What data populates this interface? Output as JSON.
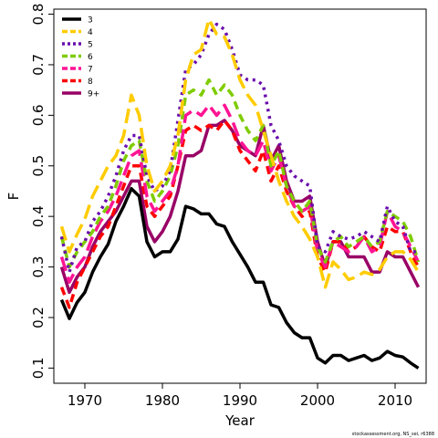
{
  "chart_data": {
    "type": "line",
    "xlabel": "Year",
    "ylabel": "F",
    "xlim": [
      1966,
      2014
    ],
    "ylim": [
      0.07,
      0.81
    ],
    "xticks": [
      1970,
      1980,
      1990,
      2000,
      2010
    ],
    "yticks": [
      0.1,
      0.2,
      0.3,
      0.4,
      0.5,
      0.6,
      0.7,
      0.8
    ],
    "legend_position": "top-left",
    "grid": false,
    "x": [
      1967,
      1968,
      1969,
      1970,
      1971,
      1972,
      1973,
      1974,
      1975,
      1976,
      1977,
      1978,
      1979,
      1980,
      1981,
      1982,
      1983,
      1984,
      1985,
      1986,
      1987,
      1988,
      1989,
      1990,
      1991,
      1992,
      1993,
      1994,
      1995,
      1996,
      1997,
      1998,
      1999,
      2000,
      2001,
      2002,
      2003,
      2004,
      2005,
      2006,
      2007,
      2008,
      2009,
      2010,
      2011,
      2012,
      2013
    ],
    "series": [
      {
        "name": "3",
        "color": "#000000",
        "dash": "solid",
        "values": [
          0.235,
          0.198,
          0.23,
          0.25,
          0.29,
          0.32,
          0.345,
          0.39,
          0.42,
          0.455,
          0.44,
          0.35,
          0.32,
          0.33,
          0.33,
          0.355,
          0.42,
          0.415,
          0.405,
          0.405,
          0.385,
          0.38,
          0.35,
          0.325,
          0.3,
          0.27,
          0.27,
          0.225,
          0.22,
          0.19,
          0.17,
          0.16,
          0.16,
          0.12,
          0.11,
          0.125,
          0.125,
          0.115,
          0.12,
          0.125,
          0.115,
          0.12,
          0.133,
          0.125,
          0.122,
          0.11,
          0.1
        ]
      },
      {
        "name": "4",
        "color": "#ffcc00",
        "dash": "longdash",
        "values": [
          0.38,
          0.33,
          0.365,
          0.395,
          0.44,
          0.47,
          0.5,
          0.52,
          0.56,
          0.64,
          0.6,
          0.5,
          0.45,
          0.47,
          0.5,
          0.56,
          0.67,
          0.72,
          0.73,
          0.79,
          0.76,
          0.755,
          0.72,
          0.67,
          0.64,
          0.62,
          0.57,
          0.52,
          0.47,
          0.43,
          0.4,
          0.38,
          0.355,
          0.32,
          0.26,
          0.31,
          0.295,
          0.275,
          0.28,
          0.29,
          0.285,
          0.295,
          0.32,
          0.33,
          0.33,
          0.315,
          0.29
        ]
      },
      {
        "name": "5",
        "color": "#6a0dad",
        "dash": "dotted",
        "values": [
          0.36,
          0.29,
          0.34,
          0.35,
          0.39,
          0.41,
          0.44,
          0.48,
          0.53,
          0.56,
          0.56,
          0.48,
          0.45,
          0.46,
          0.49,
          0.59,
          0.69,
          0.7,
          0.72,
          0.76,
          0.78,
          0.77,
          0.73,
          0.68,
          0.67,
          0.67,
          0.66,
          0.58,
          0.55,
          0.5,
          0.48,
          0.47,
          0.46,
          0.34,
          0.33,
          0.37,
          0.36,
          0.355,
          0.36,
          0.37,
          0.36,
          0.35,
          0.42,
          0.39,
          0.38,
          0.33,
          0.33
        ]
      },
      {
        "name": "6",
        "color": "#7fcc00",
        "dash": "dashed",
        "values": [
          0.36,
          0.3,
          0.33,
          0.35,
          0.37,
          0.4,
          0.42,
          0.46,
          0.51,
          0.54,
          0.55,
          0.47,
          0.43,
          0.45,
          0.48,
          0.54,
          0.64,
          0.65,
          0.64,
          0.67,
          0.64,
          0.66,
          0.64,
          0.6,
          0.57,
          0.55,
          0.58,
          0.5,
          0.53,
          0.46,
          0.43,
          0.41,
          0.43,
          0.34,
          0.31,
          0.35,
          0.36,
          0.34,
          0.35,
          0.36,
          0.34,
          0.35,
          0.41,
          0.4,
          0.39,
          0.36,
          0.31
        ]
      },
      {
        "name": "7",
        "color": "#ff1493",
        "dash": "longdash",
        "values": [
          0.32,
          0.27,
          0.3,
          0.32,
          0.36,
          0.39,
          0.41,
          0.44,
          0.48,
          0.52,
          0.53,
          0.44,
          0.41,
          0.43,
          0.45,
          0.5,
          0.6,
          0.61,
          0.6,
          0.62,
          0.6,
          0.62,
          0.59,
          0.55,
          0.53,
          0.52,
          0.55,
          0.49,
          0.52,
          0.46,
          0.42,
          0.41,
          0.42,
          0.33,
          0.3,
          0.35,
          0.34,
          0.33,
          0.34,
          0.36,
          0.33,
          0.34,
          0.41,
          0.38,
          0.37,
          0.34,
          0.31
        ]
      },
      {
        "name": "8",
        "color": "#ff0000",
        "dash": "dashed",
        "values": [
          0.26,
          0.22,
          0.27,
          0.3,
          0.33,
          0.36,
          0.38,
          0.42,
          0.46,
          0.5,
          0.5,
          0.42,
          0.4,
          0.42,
          0.44,
          0.5,
          0.57,
          0.58,
          0.57,
          0.58,
          0.57,
          0.59,
          0.57,
          0.53,
          0.51,
          0.49,
          0.53,
          0.47,
          0.5,
          0.45,
          0.42,
          0.4,
          0.41,
          0.32,
          0.29,
          0.35,
          0.35,
          0.33,
          0.34,
          0.36,
          0.34,
          0.33,
          0.38,
          0.37,
          0.37,
          0.33,
          0.3
        ]
      },
      {
        "name": "9+",
        "color": "#990066",
        "dash": "solid",
        "values": [
          0.3,
          0.25,
          0.28,
          0.3,
          0.34,
          0.37,
          0.39,
          0.41,
          0.44,
          0.47,
          0.47,
          0.38,
          0.35,
          0.37,
          0.4,
          0.45,
          0.52,
          0.52,
          0.53,
          0.58,
          0.58,
          0.59,
          0.57,
          0.54,
          0.53,
          0.52,
          0.58,
          0.51,
          0.54,
          0.47,
          0.43,
          0.43,
          0.44,
          0.35,
          0.3,
          0.35,
          0.35,
          0.32,
          0.32,
          0.32,
          0.29,
          0.29,
          0.33,
          0.32,
          0.32,
          0.29,
          0.26
        ]
      }
    ]
  },
  "footer": {
    "credit": "stockassessment.org, NS_sei, r6388"
  }
}
